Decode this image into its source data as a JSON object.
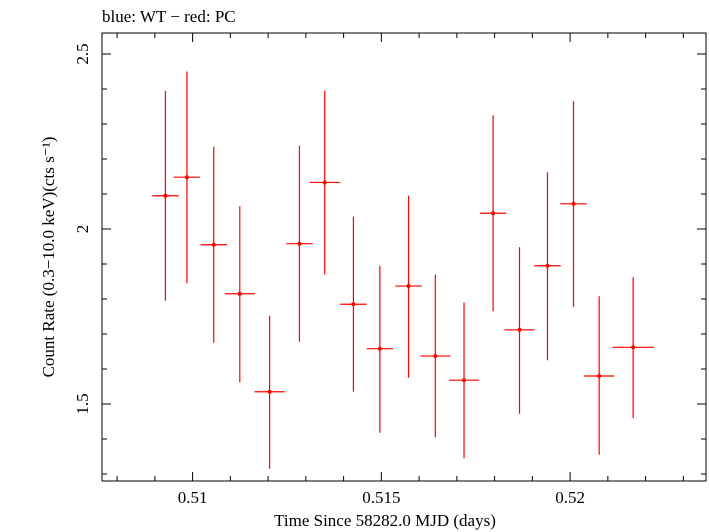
{
  "chart_data": {
    "type": "scatter",
    "title": "blue: WT − red: PC",
    "xlabel": "Time Since 58282.0 MJD (days)",
    "ylabel": "Count Rate (0.3−10.0 keV)(cts s⁻¹)",
    "xlim": [
      0.5076,
      0.5236
    ],
    "ylim": [
      1.28,
      2.56
    ],
    "xticks": [
      0.51,
      0.515,
      0.52
    ],
    "xtick_labels": [
      "0.51",
      "0.515",
      "0.52"
    ],
    "yticks": [
      1.5,
      2,
      2.5
    ],
    "ytick_labels": [
      "1.5",
      "2",
      "2.5"
    ],
    "grid": false,
    "legend": "none",
    "series": [
      {
        "color": "#ff0000",
        "points": [
          {
            "x": 0.50928,
            "y": 2.095,
            "xerr": 0.00035,
            "ylo": 1.795,
            "yhi": 2.395
          },
          {
            "x": 0.50985,
            "y": 2.148,
            "xerr": 0.00035,
            "ylo": 1.845,
            "yhi": 2.45
          },
          {
            "x": 0.51056,
            "y": 1.955,
            "xerr": 0.00035,
            "ylo": 1.675,
            "yhi": 2.235
          },
          {
            "x": 0.51125,
            "y": 1.815,
            "xerr": 0.0004,
            "ylo": 1.562,
            "yhi": 2.065
          },
          {
            "x": 0.51204,
            "y": 1.535,
            "xerr": 0.0004,
            "ylo": 1.315,
            "yhi": 1.752
          },
          {
            "x": 0.51283,
            "y": 1.958,
            "xerr": 0.00035,
            "ylo": 1.678,
            "yhi": 2.238
          },
          {
            "x": 0.5135,
            "y": 2.133,
            "xerr": 0.0004,
            "ylo": 1.87,
            "yhi": 2.395
          },
          {
            "x": 0.51426,
            "y": 1.785,
            "xerr": 0.00035,
            "ylo": 1.535,
            "yhi": 2.035
          },
          {
            "x": 0.51496,
            "y": 1.658,
            "xerr": 0.00035,
            "ylo": 1.418,
            "yhi": 1.895
          },
          {
            "x": 0.51572,
            "y": 1.837,
            "xerr": 0.00035,
            "ylo": 1.575,
            "yhi": 2.095
          },
          {
            "x": 0.51643,
            "y": 1.637,
            "xerr": 0.0004,
            "ylo": 1.405,
            "yhi": 1.87
          },
          {
            "x": 0.51719,
            "y": 1.568,
            "xerr": 0.0004,
            "ylo": 1.345,
            "yhi": 1.79
          },
          {
            "x": 0.51796,
            "y": 2.045,
            "xerr": 0.00035,
            "ylo": 1.765,
            "yhi": 2.325
          },
          {
            "x": 0.51866,
            "y": 1.712,
            "xerr": 0.0004,
            "ylo": 1.472,
            "yhi": 1.948
          },
          {
            "x": 0.5194,
            "y": 1.895,
            "xerr": 0.00035,
            "ylo": 1.625,
            "yhi": 2.162
          },
          {
            "x": 0.52009,
            "y": 2.072,
            "xerr": 0.00035,
            "ylo": 1.777,
            "yhi": 2.365
          },
          {
            "x": 0.52077,
            "y": 1.58,
            "xerr": 0.0004,
            "ylo": 1.355,
            "yhi": 1.808
          },
          {
            "x": 0.52167,
            "y": 1.662,
            "xerr": 0.00055,
            "ylo": 1.46,
            "yhi": 1.862
          }
        ]
      }
    ]
  }
}
